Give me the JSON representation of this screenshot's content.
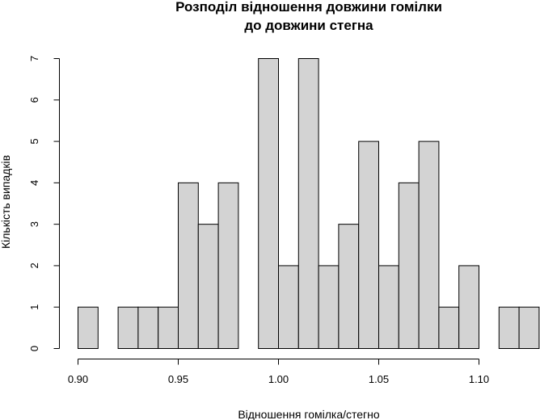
{
  "chart_data": {
    "type": "bar",
    "title_line1": "Розподіл відношення довжини гомілки",
    "title_line2": "до довжини стегна",
    "xlabel": "Відношення гомілка/стегно",
    "ylabel": "Кількість випадків",
    "bin_width": 0.01,
    "bins": [
      {
        "from": 0.9,
        "to": 0.91,
        "count": 1
      },
      {
        "from": 0.91,
        "to": 0.92,
        "count": 0
      },
      {
        "from": 0.92,
        "to": 0.93,
        "count": 1
      },
      {
        "from": 0.93,
        "to": 0.94,
        "count": 1
      },
      {
        "from": 0.94,
        "to": 0.95,
        "count": 1
      },
      {
        "from": 0.95,
        "to": 0.96,
        "count": 4
      },
      {
        "from": 0.96,
        "to": 0.97,
        "count": 3
      },
      {
        "from": 0.97,
        "to": 0.98,
        "count": 4
      },
      {
        "from": 0.98,
        "to": 0.99,
        "count": 0
      },
      {
        "from": 0.99,
        "to": 1.0,
        "count": 7
      },
      {
        "from": 1.0,
        "to": 1.01,
        "count": 2
      },
      {
        "from": 1.01,
        "to": 1.02,
        "count": 7
      },
      {
        "from": 1.02,
        "to": 1.03,
        "count": 2
      },
      {
        "from": 1.03,
        "to": 1.04,
        "count": 3
      },
      {
        "from": 1.04,
        "to": 1.05,
        "count": 5
      },
      {
        "from": 1.05,
        "to": 1.06,
        "count": 2
      },
      {
        "from": 1.06,
        "to": 1.07,
        "count": 4
      },
      {
        "from": 1.07,
        "to": 1.08,
        "count": 5
      },
      {
        "from": 1.08,
        "to": 1.09,
        "count": 1
      },
      {
        "from": 1.09,
        "to": 1.1,
        "count": 2
      },
      {
        "from": 1.1,
        "to": 1.11,
        "count": 0
      },
      {
        "from": 1.11,
        "to": 1.12,
        "count": 1
      },
      {
        "from": 1.12,
        "to": 1.13,
        "count": 1
      }
    ],
    "xticks": [
      "0.90",
      "0.95",
      "1.00",
      "1.05",
      "1.10"
    ],
    "yticks": [
      "0",
      "1",
      "2",
      "3",
      "4",
      "5",
      "6",
      "7"
    ],
    "xlim": [
      0.9,
      1.13
    ],
    "ylim": [
      0,
      7
    ],
    "bar_color": "#d3d3d3",
    "border_color": "#000000",
    "grid": false,
    "legend": "none"
  }
}
